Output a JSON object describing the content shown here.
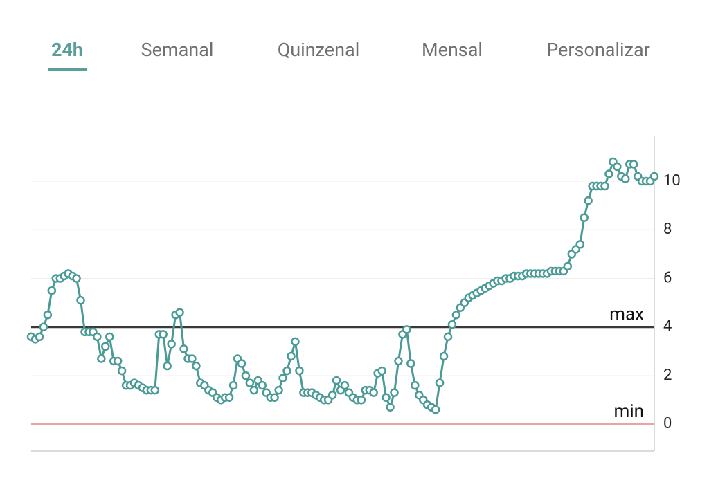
{
  "tabs": {
    "items": [
      "24h",
      "Semanal",
      "Quinzenal",
      "Mensal",
      "Personalizar"
    ],
    "active": 0
  },
  "chart_data": {
    "type": "line",
    "values": [
      3.6,
      3.5,
      3.6,
      4.0,
      4.5,
      5.5,
      6.0,
      6.0,
      6.1,
      6.2,
      6.1,
      6.0,
      5.1,
      3.8,
      3.8,
      3.8,
      3.6,
      2.7,
      3.2,
      3.6,
      2.6,
      2.6,
      2.2,
      1.6,
      1.6,
      1.7,
      1.6,
      1.5,
      1.4,
      1.4,
      1.4,
      3.7,
      3.7,
      2.4,
      3.3,
      4.5,
      4.6,
      3.1,
      2.7,
      2.7,
      2.4,
      1.7,
      1.6,
      1.4,
      1.3,
      1.1,
      1.0,
      1.1,
      1.1,
      1.6,
      2.7,
      2.5,
      2.0,
      1.7,
      1.4,
      1.8,
      1.6,
      1.3,
      1.1,
      1.1,
      1.4,
      1.9,
      2.2,
      2.8,
      3.4,
      2.2,
      1.3,
      1.3,
      1.3,
      1.2,
      1.1,
      1.0,
      1.0,
      1.2,
      1.8,
      1.4,
      1.6,
      1.3,
      1.1,
      1.0,
      1.0,
      1.4,
      1.4,
      1.3,
      2.1,
      2.2,
      1.1,
      0.7,
      1.3,
      2.6,
      3.7,
      3.9,
      2.5,
      1.6,
      1.2,
      1.0,
      0.8,
      0.7,
      0.6,
      1.7,
      2.8,
      3.6,
      4.1,
      4.5,
      4.8,
      5.0,
      5.2,
      5.3,
      5.4,
      5.5,
      5.6,
      5.7,
      5.8,
      5.9,
      5.9,
      6.0,
      6.0,
      6.1,
      6.1,
      6.1,
      6.2,
      6.2,
      6.2,
      6.2,
      6.2,
      6.2,
      6.3,
      6.3,
      6.3,
      6.3,
      6.5,
      7.0,
      7.2,
      7.4,
      8.5,
      9.2,
      9.8,
      9.8,
      9.8,
      9.8,
      10.3,
      10.8,
      10.6,
      10.2,
      10.1,
      10.7,
      10.7,
      10.2,
      10.0,
      10.0,
      10.0,
      10.2
    ],
    "color": "#4a9a96",
    "ylim": [
      -1.1,
      11.85
    ],
    "yticks": [
      0,
      2,
      4,
      6,
      8,
      10
    ],
    "grid": true,
    "thresholds": [
      {
        "label": "max",
        "value": 4,
        "color": "#3a3a3a"
      },
      {
        "label": "min",
        "value": 0,
        "color": "#e8a3a3"
      }
    ]
  }
}
